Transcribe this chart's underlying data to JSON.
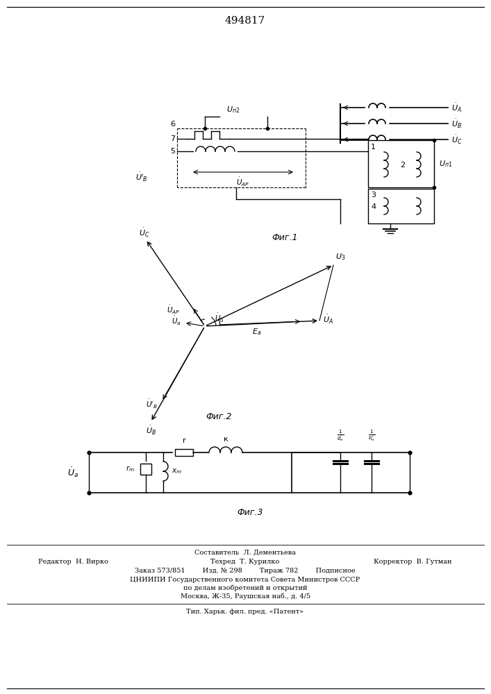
{
  "title": "494817",
  "fig1_label": "Фиг.1",
  "fig2_label": "Фиг.2",
  "fig3_label": "Фиг.3",
  "footer_line1": "Составитель  Л. Дементьева",
  "footer_line2_left": "Редактор  Н. Вирко",
  "footer_line2_mid": "Техред  Т. Курилко",
  "footer_line2_right": "Корректор  В. Гутман",
  "footer_line3": "Заказ 573/851        Изд. № 298        Тираж 782        Подписное",
  "footer_line4": "ЦНИИПИ Государственного комитета Совета Министров СССР",
  "footer_line5": "по делам изобретений и открытий",
  "footer_line6": "Москва, Ж-35, Раушская наб., д. 4/5",
  "footer_line7": "Тип. Харьк. фил. пред. «Патент»",
  "bg_color": "#ffffff"
}
